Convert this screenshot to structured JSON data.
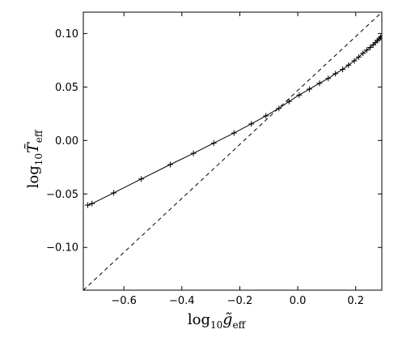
{
  "chart_data": {
    "type": "line",
    "xlim": [
      -0.74,
      0.29
    ],
    "ylim": [
      -0.14,
      0.12
    ],
    "xticks": [
      -0.6,
      -0.4,
      -0.2,
      0.0,
      0.2
    ],
    "xtick_labels": [
      "−0.6",
      "−0.4",
      "−0.2",
      "0.0",
      "0.2"
    ],
    "yticks": [
      -0.1,
      -0.05,
      0.0,
      0.05,
      0.1
    ],
    "ytick_labels": [
      "−0.10",
      "−0.05",
      "0.00",
      "0.05",
      "0.10"
    ],
    "xlabel": {
      "base": "log",
      "sub": "10",
      "var": "g̃",
      "varsub": "eff"
    },
    "ylabel": {
      "base": "log",
      "sub": "10",
      "var": "T̃",
      "varsub": "eff"
    },
    "grid": false,
    "series": [
      {
        "style": "solid",
        "marker": "+",
        "color": "#000000",
        "points": [
          [
            -0.725,
            -0.0605
          ],
          [
            -0.71,
            -0.059
          ],
          [
            -0.635,
            -0.049
          ],
          [
            -0.54,
            -0.036
          ],
          [
            -0.44,
            -0.0225
          ],
          [
            -0.36,
            -0.012
          ],
          [
            -0.29,
            -0.0025
          ],
          [
            -0.22,
            0.007
          ],
          [
            -0.16,
            0.0155
          ],
          [
            -0.11,
            0.023
          ],
          [
            -0.065,
            0.03
          ],
          [
            -0.03,
            0.0365
          ],
          [
            0.005,
            0.0425
          ],
          [
            0.04,
            0.048
          ],
          [
            0.075,
            0.0535
          ],
          [
            0.105,
            0.058
          ],
          [
            0.13,
            0.0625
          ],
          [
            0.155,
            0.0665
          ],
          [
            0.175,
            0.0705
          ],
          [
            0.195,
            0.0745
          ],
          [
            0.21,
            0.078
          ],
          [
            0.225,
            0.0815
          ],
          [
            0.238,
            0.0845
          ],
          [
            0.25,
            0.087
          ],
          [
            0.26,
            0.0895
          ],
          [
            0.268,
            0.0915
          ],
          [
            0.275,
            0.0935
          ],
          [
            0.281,
            0.095
          ],
          [
            0.286,
            0.0965
          ],
          [
            0.29,
            0.0975
          ]
        ]
      },
      {
        "style": "dashed",
        "color": "#000000",
        "points": [
          [
            -0.74,
            -0.14
          ],
          [
            0.29,
            0.12
          ]
        ]
      }
    ]
  }
}
